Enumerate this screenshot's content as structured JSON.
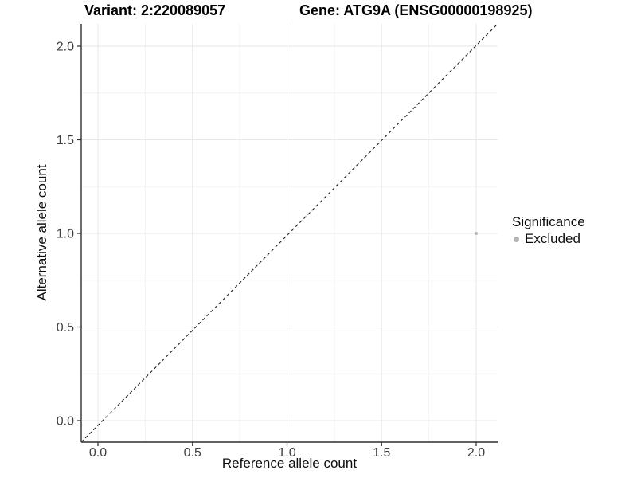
{
  "header": {
    "variant_title": "Variant: 2:220089057",
    "gene_title": "Gene: ATG9A (ENSG00000198925)"
  },
  "chart_data": {
    "type": "scatter",
    "title": "Variant: 2:220089057   Gene: ATG9A (ENSG00000198925)",
    "xlabel": "Reference allele count",
    "ylabel": "Alternative allele count",
    "xlim": [
      -0.09,
      2.11
    ],
    "ylim": [
      -0.12,
      2.12
    ],
    "x_ticks": [
      0.0,
      0.5,
      1.0,
      1.5,
      2.0
    ],
    "y_ticks": [
      0.0,
      0.5,
      1.0,
      1.5,
      2.0
    ],
    "tick_label_format_decimals": 1,
    "grid": true,
    "reference_line": {
      "kind": "abline",
      "slope": 1,
      "intercept": 0,
      "style": "dashed"
    },
    "series": [
      {
        "name": "Excluded",
        "color": "#b5b5b5",
        "points": [
          {
            "x": 2.0,
            "y": 1.0
          }
        ]
      }
    ],
    "legend": {
      "title": "Significance",
      "position": "right",
      "entries": [
        {
          "label": "Excluded",
          "color": "#b5b5b5"
        }
      ]
    },
    "colors": {
      "grid_major": "#e7e7e7",
      "grid_minor": "#f2f2f2",
      "axis_line": "#2f2f2f",
      "tick_label": "#404040",
      "reference_line": "#1f1f1f",
      "background": "#ffffff"
    }
  }
}
